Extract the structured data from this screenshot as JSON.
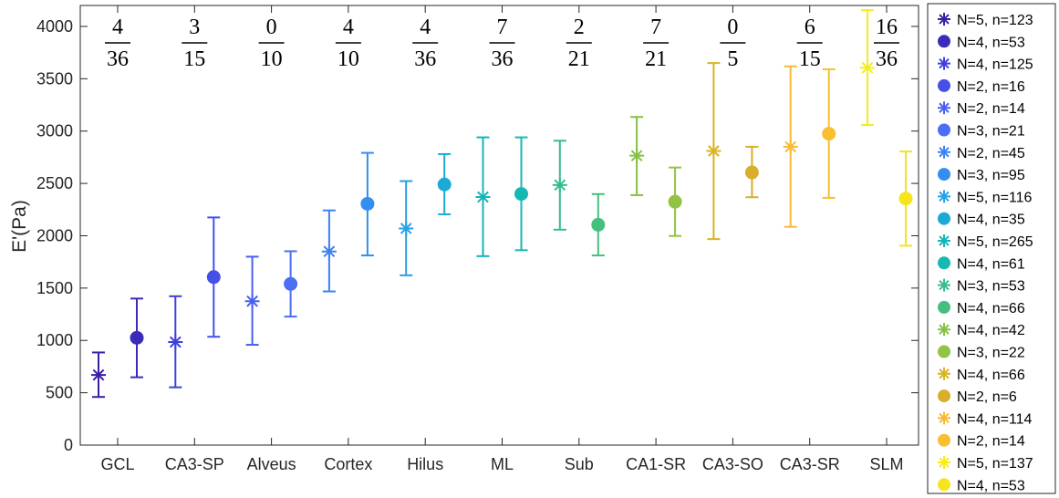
{
  "chart_data": {
    "type": "scatter",
    "title": "",
    "xlabel": "",
    "ylabel": "E'(Pa)",
    "ylim": [
      0,
      4200
    ],
    "yticks": [
      0,
      500,
      1000,
      1500,
      2000,
      2500,
      3000,
      3500,
      4000
    ],
    "categories": [
      "GCL",
      "CA3-SP",
      "Alveus",
      "Cortex",
      "Hilus",
      "ML",
      "Sub",
      "CA1-SR",
      "CA3-SO",
      "CA3-SR",
      "SLM"
    ],
    "fractions": [
      {
        "num": "4",
        "den": "36"
      },
      {
        "num": "3",
        "den": "15"
      },
      {
        "num": "0",
        "den": "10"
      },
      {
        "num": "4",
        "den": "10"
      },
      {
        "num": "4",
        "den": "36"
      },
      {
        "num": "7",
        "den": "36"
      },
      {
        "num": "2",
        "den": "21"
      },
      {
        "num": "7",
        "den": "21"
      },
      {
        "num": "0",
        "den": "5"
      },
      {
        "num": "6",
        "den": "15"
      },
      {
        "num": "16",
        "den": "36"
      }
    ],
    "series": [
      {
        "name": "N=5, n=123",
        "category": 0,
        "marker": "star",
        "color": "#3a1fa6",
        "value": 670,
        "low": 460,
        "high": 885
      },
      {
        "name": "N=4, n=53",
        "category": 0,
        "marker": "circle",
        "color": "#3a2cb8",
        "value": 1025,
        "low": 648,
        "high": 1400
      },
      {
        "name": "N=4, n=125",
        "category": 1,
        "marker": "star",
        "color": "#3f3fdc",
        "value": 985,
        "low": 552,
        "high": 1422
      },
      {
        "name": "N=2, n=16",
        "category": 1,
        "marker": "circle",
        "color": "#4450e8",
        "value": 1605,
        "low": 1035,
        "high": 2175
      },
      {
        "name": "N=2, n=14",
        "category": 2,
        "marker": "star",
        "color": "#4860f0",
        "value": 1375,
        "low": 958,
        "high": 1800
      },
      {
        "name": "N=3, n=21",
        "category": 2,
        "marker": "circle",
        "color": "#4a6ff4",
        "value": 1540,
        "low": 1228,
        "high": 1852
      },
      {
        "name": "N=2, n=45",
        "category": 3,
        "marker": "star",
        "color": "#3d82f2",
        "value": 1850,
        "low": 1468,
        "high": 2242
      },
      {
        "name": "N=3, n=95",
        "category": 3,
        "marker": "circle",
        "color": "#338ef0",
        "value": 2305,
        "low": 1812,
        "high": 2792
      },
      {
        "name": "N=5, n=116",
        "category": 4,
        "marker": "star",
        "color": "#26a0e6",
        "value": 2070,
        "low": 1622,
        "high": 2522
      },
      {
        "name": "N=4, n=35",
        "category": 4,
        "marker": "circle",
        "color": "#1baad6",
        "value": 2490,
        "low": 2205,
        "high": 2780
      },
      {
        "name": "N=5, n=265",
        "category": 5,
        "marker": "star",
        "color": "#14b4b8",
        "value": 2370,
        "low": 1805,
        "high": 2940
      },
      {
        "name": "N=4, n=61",
        "category": 5,
        "marker": "circle",
        "color": "#18b8b2",
        "value": 2400,
        "low": 1862,
        "high": 2940
      },
      {
        "name": "N=3, n=53",
        "category": 6,
        "marker": "star",
        "color": "#36bd8c",
        "value": 2485,
        "low": 2058,
        "high": 2908
      },
      {
        "name": "N=4, n=66",
        "category": 6,
        "marker": "circle",
        "color": "#44bf7e",
        "value": 2105,
        "low": 1812,
        "high": 2398
      },
      {
        "name": "N=4, n=42",
        "category": 7,
        "marker": "star",
        "color": "#84c145",
        "value": 2765,
        "low": 2388,
        "high": 3135
      },
      {
        "name": "N=3, n=22",
        "category": 7,
        "marker": "circle",
        "color": "#92c342",
        "value": 2325,
        "low": 1998,
        "high": 2652
      },
      {
        "name": "N=4, n=66",
        "category": 8,
        "marker": "star",
        "color": "#d8b424",
        "value": 2810,
        "low": 1968,
        "high": 3650
      },
      {
        "name": "N=2, n=6",
        "category": 8,
        "marker": "circle",
        "color": "#d8ae2c",
        "value": 2605,
        "low": 2368,
        "high": 2850
      },
      {
        "name": "N=4, n=114",
        "category": 9,
        "marker": "star",
        "color": "#f8ba36",
        "value": 2850,
        "low": 2085,
        "high": 3618
      },
      {
        "name": "N=2, n=14",
        "category": 9,
        "marker": "circle",
        "color": "#f8c030",
        "value": 2975,
        "low": 2362,
        "high": 3590
      },
      {
        "name": "N=5, n=137",
        "category": 10,
        "marker": "star",
        "color": "#f6ec1a",
        "value": 3605,
        "low": 3058,
        "high": 4155
      },
      {
        "name": "N=4, n=53",
        "category": 10,
        "marker": "circle",
        "color": "#f6e41e",
        "value": 2355,
        "low": 1905,
        "high": 2805
      }
    ]
  }
}
